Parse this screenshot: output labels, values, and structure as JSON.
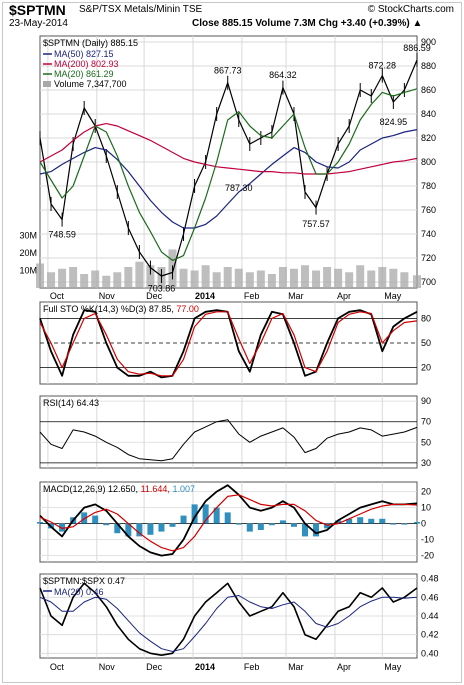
{
  "header": {
    "symbol": "$SPTMN",
    "name": "S&P/TSX Metals/Minin TSE",
    "brand": "© StockCharts.com",
    "date": "23-May-2014",
    "quote": "Close 885.15  Volume 7.3M  Chg +3.40 (+0.39%)",
    "quote_arrow": "▲"
  },
  "chart_data": [
    {
      "type": "line",
      "panel": "price",
      "legend": {
        "main": "$SPTMN (Daily) 885.15",
        "ma50": "MA(50) 827.15",
        "ma200": "MA(200) 802.93",
        "ma20": "MA(20) 861.29",
        "volume": "Volume 7,347,700"
      },
      "x": [
        "2013-09-26",
        "2013-10-03",
        "2013-10-10",
        "2013-10-17",
        "2013-10-24",
        "2013-10-31",
        "2013-11-07",
        "2013-11-14",
        "2013-11-21",
        "2013-11-28",
        "2013-12-05",
        "2013-12-12",
        "2013-12-19",
        "2013-12-26",
        "2014-01-02",
        "2014-01-09",
        "2014-01-16",
        "2014-01-23",
        "2014-01-30",
        "2014-02-06",
        "2014-02-13",
        "2014-02-20",
        "2014-02-27",
        "2014-03-06",
        "2014-03-13",
        "2014-03-20",
        "2014-03-27",
        "2014-04-03",
        "2014-04-10",
        "2014-04-17",
        "2014-04-24",
        "2014-05-01",
        "2014-05-08",
        "2014-05-15",
        "2014-05-23"
      ],
      "series": [
        {
          "name": "$SPTMN",
          "color": "#000000",
          "values": [
            820,
            765,
            752,
            815,
            845,
            830,
            805,
            775,
            745,
            725,
            712,
            705,
            708,
            740,
            780,
            800,
            840,
            866,
            835,
            815,
            820,
            825,
            862,
            840,
            775,
            762,
            790,
            815,
            830,
            860,
            855,
            872,
            850,
            860,
            885
          ]
        },
        {
          "name": "MA(50)",
          "color": "#1a237e",
          "values": [
            790,
            792,
            798,
            803,
            808,
            812,
            810,
            802,
            792,
            780,
            768,
            758,
            750,
            745,
            745,
            748,
            755,
            765,
            775,
            782,
            790,
            798,
            805,
            812,
            808,
            800,
            796,
            795,
            800,
            810,
            815,
            820,
            822,
            825,
            827
          ]
        },
        {
          "name": "MA(200)",
          "color": "#c0003c",
          "values": [
            800,
            805,
            810,
            818,
            825,
            830,
            832,
            830,
            826,
            822,
            818,
            813,
            808,
            803,
            800,
            798,
            796,
            795,
            794,
            793,
            792,
            792,
            791,
            791,
            790,
            790,
            790,
            791,
            792,
            794,
            796,
            798,
            800,
            801,
            803
          ]
        },
        {
          "name": "MA(20)",
          "color": "#1b6b1b",
          "values": [
            800,
            785,
            770,
            780,
            805,
            830,
            825,
            805,
            780,
            758,
            742,
            725,
            718,
            722,
            745,
            770,
            800,
            835,
            842,
            830,
            822,
            820,
            830,
            840,
            812,
            790,
            790,
            800,
            815,
            835,
            848,
            858,
            855,
            858,
            861
          ]
        }
      ],
      "volume_millions": [
        14,
        9,
        11,
        12,
        8,
        10,
        7,
        9,
        12,
        15,
        13,
        12,
        22,
        11,
        10,
        13,
        9,
        12,
        11,
        9,
        10,
        8,
        12,
        11,
        13,
        10,
        12,
        11,
        9,
        13,
        10,
        12,
        11,
        9,
        7.3
      ],
      "annotations": [
        {
          "label": "748.59",
          "x": "2013-10-10",
          "y": 748.59
        },
        {
          "label": "867.73",
          "x": "2014-01-23",
          "y": 867.73
        },
        {
          "label": "864.32",
          "x": "2014-02-27",
          "y": 864.32
        },
        {
          "label": "787.30",
          "x": "2014-01-30",
          "y": 787.3
        },
        {
          "label": "703.86",
          "x": "2013-12-12",
          "y": 703.86
        },
        {
          "label": "757.57",
          "x": "2014-03-20",
          "y": 757.57
        },
        {
          "label": "872.28",
          "x": "2014-05-01",
          "y": 872.28
        },
        {
          "label": "824.95",
          "x": "2014-05-08",
          "y": 824.95
        },
        {
          "label": "886.59",
          "x": "2014-05-23",
          "y": 886.59
        }
      ],
      "y_ticks": [
        700,
        720,
        740,
        760,
        780,
        800,
        820,
        840,
        860,
        880,
        900
      ],
      "volume_ticks": [
        "10M",
        "20M",
        "30M"
      ],
      "ylim": [
        695,
        905
      ],
      "grid": true
    },
    {
      "type": "line",
      "panel": "stochastic",
      "legend": {
        "label": "Full STO %K(14,3) %D(3)",
        "k": "87.85",
        "d": "77.00"
      },
      "series": [
        {
          "name": "%K",
          "color": "#000000",
          "values": [
            80,
            40,
            10,
            60,
            90,
            88,
            50,
            20,
            10,
            10,
            15,
            8,
            10,
            40,
            80,
            88,
            90,
            88,
            40,
            15,
            60,
            88,
            85,
            50,
            10,
            15,
            50,
            80,
            88,
            90,
            85,
            40,
            70,
            80,
            88
          ]
        },
        {
          "name": "%D",
          "color": "#d00000",
          "values": [
            75,
            50,
            20,
            50,
            80,
            86,
            60,
            30,
            15,
            12,
            13,
            10,
            10,
            30,
            70,
            85,
            88,
            88,
            55,
            25,
            50,
            80,
            86,
            60,
            20,
            15,
            40,
            75,
            85,
            88,
            86,
            50,
            65,
            75,
            77
          ]
        }
      ],
      "y_ticks": [
        20,
        50,
        80
      ],
      "ylim": [
        0,
        100
      ]
    },
    {
      "type": "line",
      "panel": "rsi",
      "legend": {
        "label": "RSI(14) 64.43"
      },
      "series": [
        {
          "name": "RSI(14)",
          "color": "#000000",
          "values": [
            60,
            48,
            44,
            62,
            60,
            56,
            50,
            45,
            38,
            34,
            33,
            32,
            34,
            48,
            60,
            65,
            70,
            72,
            58,
            50,
            56,
            60,
            64,
            55,
            40,
            44,
            54,
            58,
            60,
            64,
            62,
            56,
            58,
            60,
            64.43
          ]
        }
      ],
      "y_ticks": [
        30,
        50,
        70,
        90
      ],
      "ylim": [
        25,
        95
      ]
    },
    {
      "type": "line",
      "panel": "macd",
      "legend": {
        "label": "MACD(12,26,9)",
        "macd": "12.650",
        "signal": "11.644",
        "hist": "1.007"
      },
      "series": [
        {
          "name": "MACD",
          "color": "#000000",
          "values": [
            5,
            -2,
            -8,
            2,
            10,
            12,
            8,
            0,
            -8,
            -14,
            -18,
            -20,
            -19,
            -10,
            4,
            14,
            20,
            24,
            18,
            10,
            8,
            10,
            14,
            10,
            0,
            -6,
            -4,
            2,
            6,
            10,
            12,
            14,
            12,
            12,
            12.65
          ]
        },
        {
          "name": "Signal",
          "color": "#d00000",
          "values": [
            4,
            1,
            -3,
            -2,
            3,
            7,
            9,
            6,
            0,
            -6,
            -11,
            -15,
            -17,
            -15,
            -8,
            2,
            10,
            17,
            18,
            15,
            12,
            11,
            12,
            12,
            8,
            2,
            -1,
            0,
            3,
            6,
            9,
            11,
            12,
            12,
            11.644
          ]
        }
      ],
      "y_ticks": [
        -20,
        -10,
        0,
        10,
        20
      ],
      "ylim": [
        -24,
        26
      ]
    },
    {
      "type": "line",
      "panel": "ratio",
      "legend": {
        "label": "$SPTMN:$SPX 0.47",
        "ma": "MA(20) 0.46"
      },
      "series": [
        {
          "name": "$SPTMN:$SPX",
          "color": "#000000",
          "values": [
            0.47,
            0.44,
            0.43,
            0.46,
            0.475,
            0.465,
            0.45,
            0.43,
            0.415,
            0.405,
            0.4,
            0.398,
            0.4,
            0.415,
            0.44,
            0.455,
            0.465,
            0.475,
            0.455,
            0.44,
            0.445,
            0.45,
            0.465,
            0.45,
            0.42,
            0.415,
            0.43,
            0.445,
            0.45,
            0.465,
            0.46,
            0.47,
            0.455,
            0.46,
            0.47
          ]
        },
        {
          "name": "MA(20)",
          "color": "#1a237e",
          "values": [
            0.46,
            0.455,
            0.445,
            0.445,
            0.455,
            0.46,
            0.458,
            0.448,
            0.435,
            0.422,
            0.413,
            0.405,
            0.402,
            0.405,
            0.418,
            0.432,
            0.448,
            0.46,
            0.462,
            0.455,
            0.45,
            0.448,
            0.452,
            0.455,
            0.445,
            0.432,
            0.428,
            0.432,
            0.44,
            0.45,
            0.456,
            0.46,
            0.46,
            0.459,
            0.46
          ]
        }
      ],
      "y_ticks": [
        0.4,
        0.42,
        0.44,
        0.46,
        0.48
      ],
      "ylim": [
        0.395,
        0.485
      ]
    }
  ],
  "x_axis": {
    "labels": [
      "Oct",
      "Nov",
      "Dec",
      "2014",
      "Feb",
      "Mar",
      "Apr",
      "May"
    ],
    "label_dates": [
      "2013-10-01",
      "2013-11-01",
      "2013-12-01",
      "2014-01-01",
      "2014-02-01",
      "2014-03-01",
      "2014-04-01",
      "2014-05-01"
    ]
  },
  "colors": {
    "grid": "#d9d9d9",
    "volume": "#a8a8a8",
    "ma50": "#1a237e",
    "ma200": "#c0003c",
    "ma20": "#1b6b1b",
    "hist": "#2f8fbf"
  }
}
